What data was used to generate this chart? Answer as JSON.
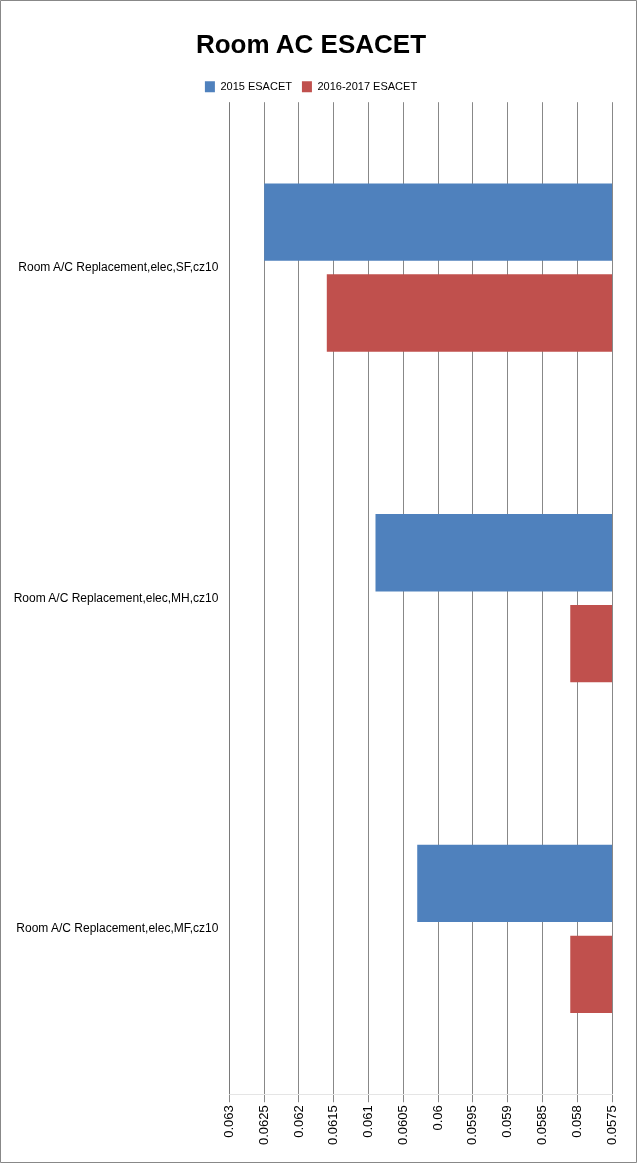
{
  "chart_data": {
    "type": "bar",
    "title": "Room AC ESACET",
    "orientation": "horizontal",
    "categories": [
      "Room A/C Replacement,elec,SF,cz10",
      "Room A/C Replacement,elec,MH,cz10",
      "Room A/C Replacement,elec,MF,cz10"
    ],
    "series": [
      {
        "name": "2015 ESACET",
        "color": "#4f81bd",
        "values": [
          0.0625,
          0.0609,
          0.0603
        ]
      },
      {
        "name": "2016-2017 ESACET",
        "color": "#c0504d",
        "values": [
          0.0616,
          0.0581,
          0.0581
        ]
      }
    ],
    "xlim": [
      0.063,
      0.0575
    ],
    "xticks": [
      0.063,
      0.0625,
      0.062,
      0.0615,
      0.061,
      0.0605,
      0.06,
      0.0595,
      0.059,
      0.0585,
      0.058,
      0.0575
    ],
    "grid": "x",
    "legend": "top"
  }
}
